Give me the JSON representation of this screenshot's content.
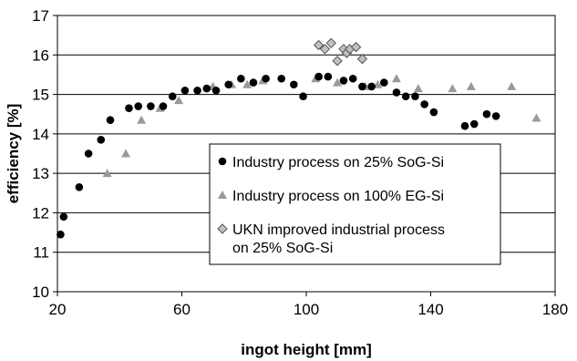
{
  "chart_data": {
    "type": "scatter",
    "xlabel": "ingot height [mm]",
    "ylabel": "efficiency [%]",
    "xlim": [
      20,
      180
    ],
    "ylim": [
      10,
      17
    ],
    "xticks": [
      "20",
      "60",
      "100",
      "140",
      "180"
    ],
    "yticks": [
      "10",
      "11",
      "12",
      "13",
      "14",
      "15",
      "16",
      "17"
    ],
    "grid": "horizontal",
    "legend_position": "center",
    "series": [
      {
        "name": "Industry process on 25% SoG-Si",
        "marker": "circle",
        "color": "#000000",
        "points": [
          [
            21,
            11.45
          ],
          [
            22,
            11.9
          ],
          [
            27,
            12.65
          ],
          [
            30,
            13.5
          ],
          [
            34,
            13.85
          ],
          [
            37,
            14.35
          ],
          [
            43,
            14.65
          ],
          [
            46,
            14.7
          ],
          [
            50,
            14.7
          ],
          [
            54,
            14.7
          ],
          [
            57,
            14.95
          ],
          [
            61,
            15.1
          ],
          [
            65,
            15.1
          ],
          [
            68,
            15.15
          ],
          [
            71,
            15.1
          ],
          [
            75,
            15.25
          ],
          [
            79,
            15.4
          ],
          [
            83,
            15.3
          ],
          [
            87,
            15.4
          ],
          [
            92,
            15.4
          ],
          [
            96,
            15.25
          ],
          [
            99,
            14.95
          ],
          [
            104,
            15.45
          ],
          [
            107,
            15.45
          ],
          [
            112,
            15.35
          ],
          [
            115,
            15.4
          ],
          [
            118,
            15.2
          ],
          [
            121,
            15.2
          ],
          [
            125,
            15.3
          ],
          [
            129,
            15.05
          ],
          [
            132,
            14.95
          ],
          [
            135,
            14.95
          ],
          [
            138,
            14.75
          ],
          [
            141,
            14.55
          ],
          [
            151,
            14.2
          ],
          [
            154,
            14.25
          ],
          [
            158,
            14.5
          ],
          [
            161,
            14.45
          ]
        ]
      },
      {
        "name": "Industry process on 100% EG-Si",
        "marker": "triangle",
        "color": "#9a9a9a",
        "points": [
          [
            36,
            13.0
          ],
          [
            42,
            13.5
          ],
          [
            47,
            14.35
          ],
          [
            53,
            14.65
          ],
          [
            59,
            14.85
          ],
          [
            70,
            15.2
          ],
          [
            76,
            15.25
          ],
          [
            81,
            15.25
          ],
          [
            86,
            15.35
          ],
          [
            103,
            15.4
          ],
          [
            110,
            15.3
          ],
          [
            119,
            15.2
          ],
          [
            123,
            15.25
          ],
          [
            129,
            15.4
          ],
          [
            136,
            15.15
          ],
          [
            147,
            15.15
          ],
          [
            153,
            15.2
          ],
          [
            166,
            15.2
          ],
          [
            174,
            14.4
          ]
        ]
      },
      {
        "name": "UKN improved industrial process on 25% SoG-Si",
        "legend_lines": [
          "UKN improved industrial process",
          "on 25% SoG-Si"
        ],
        "marker": "diamond",
        "color": "#c0c0c0",
        "points": [
          [
            104,
            16.25
          ],
          [
            106,
            16.15
          ],
          [
            108,
            16.3
          ],
          [
            110,
            15.85
          ],
          [
            112,
            16.15
          ],
          [
            113,
            16.05
          ],
          [
            114,
            16.15
          ],
          [
            116,
            16.2
          ],
          [
            118,
            15.9
          ]
        ]
      }
    ]
  }
}
